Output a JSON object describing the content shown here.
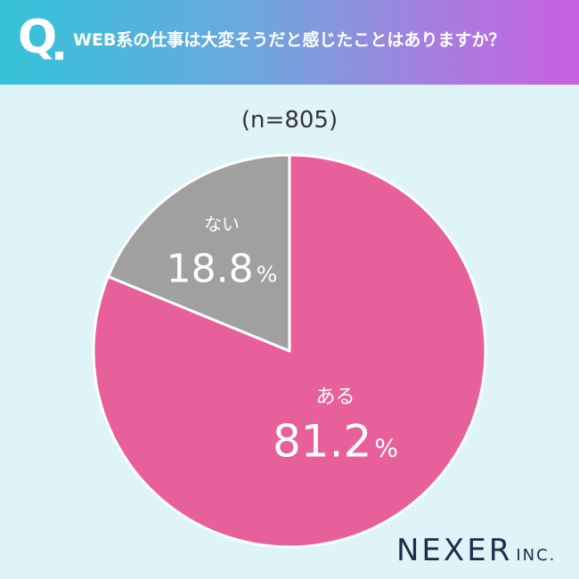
{
  "header": {
    "q_mark": "Q",
    "question": "WEB系の仕事は大変そうだと感じたことはありますか？"
  },
  "sample_size": "(n=805)",
  "logo": {
    "main": "NEXER",
    "sub": "INC."
  },
  "colors": {
    "aru": "#e8609b",
    "nai": "#a0a0a0",
    "background": "#dff4f8"
  },
  "chart_data": {
    "type": "pie",
    "slices": [
      {
        "label": "ある",
        "value": 81.2,
        "display": "81.2",
        "unit": "%",
        "color": "#e8609b"
      },
      {
        "label": "ない",
        "value": 18.8,
        "display": "18.8",
        "unit": "%",
        "color": "#a0a0a0"
      }
    ]
  }
}
